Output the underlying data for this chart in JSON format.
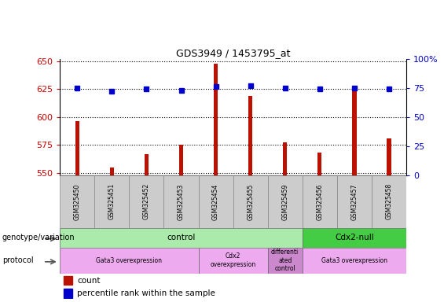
{
  "title": "GDS3949 / 1453795_at",
  "samples": [
    "GSM325450",
    "GSM325451",
    "GSM325452",
    "GSM325453",
    "GSM325454",
    "GSM325455",
    "GSM325459",
    "GSM325456",
    "GSM325457",
    "GSM325458"
  ],
  "counts": [
    596,
    555,
    567,
    575,
    648,
    619,
    577,
    568,
    625,
    581
  ],
  "percentile_ranks": [
    75,
    72,
    74,
    73,
    76,
    77,
    75,
    74,
    75,
    74
  ],
  "ylim_left": [
    548,
    652
  ],
  "ylim_right": [
    0,
    100
  ],
  "yticks_left": [
    550,
    575,
    600,
    625,
    650
  ],
  "yticks_right": [
    0,
    25,
    50,
    75,
    100
  ],
  "bar_color": "#bb1100",
  "dot_color": "#0000cc",
  "genotype_groups": [
    {
      "label": "control",
      "start": 0,
      "end": 7,
      "color": "#aaeaaa"
    },
    {
      "label": "Cdx2-null",
      "start": 7,
      "end": 10,
      "color": "#44cc44"
    }
  ],
  "protocol_groups": [
    {
      "label": "Gata3 overexpression",
      "start": 0,
      "end": 4,
      "color": "#eeaaee"
    },
    {
      "label": "Cdx2\noverexpression",
      "start": 4,
      "end": 6,
      "color": "#eeaaee"
    },
    {
      "label": "differenti\nated\ncontrol",
      "start": 6,
      "end": 7,
      "color": "#cc88cc"
    },
    {
      "label": "Gata3 overexpression",
      "start": 7,
      "end": 10,
      "color": "#eeaaee"
    }
  ],
  "left_label_color": "#cc0000",
  "right_label_color": "#0000cc",
  "bar_width": 0.12,
  "dot_size": 5
}
